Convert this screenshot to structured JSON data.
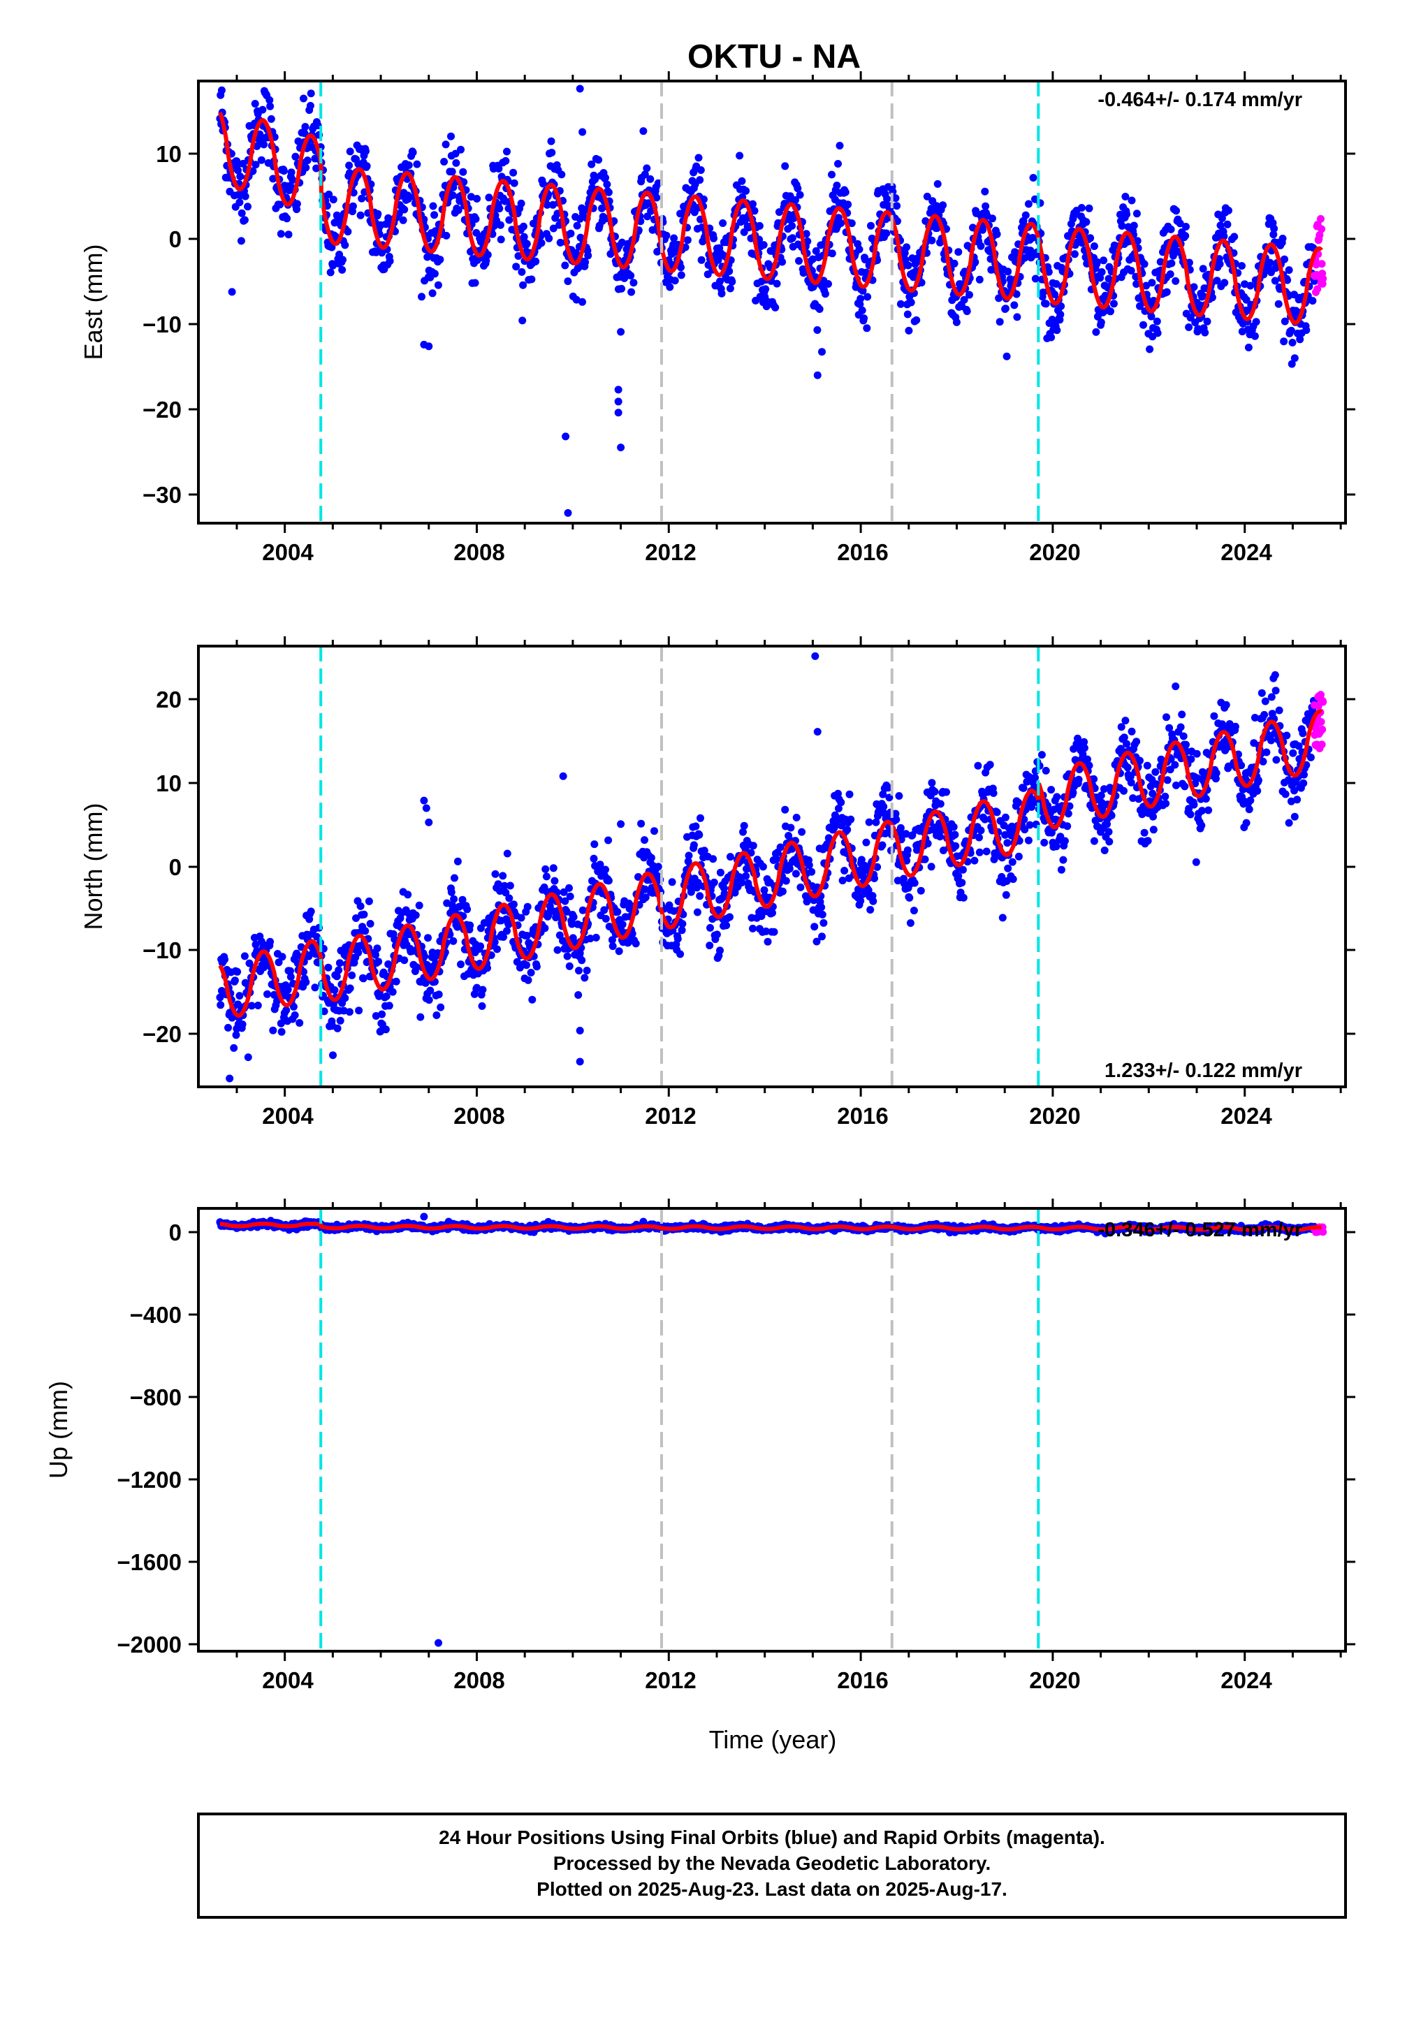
{
  "title": "OKTU - NA",
  "footer": {
    "lines": [
      "24 Hour Positions Using Final Orbits (blue) and Rapid Orbits (magenta).",
      "Processed by the Nevada Geodetic Laboratory.",
      "Plotted on 2025-Aug-23. Last data on 2025-Aug-17."
    ]
  },
  "colors": {
    "final_orbits": "#0000ff",
    "rapid_orbits": "#ff00ff",
    "model_fit": "#ff0000",
    "equipment_change": "#00e5e5",
    "other_event": "#c0c0c0"
  },
  "chart_data": [
    {
      "type": "scatter",
      "name": "east",
      "ylabel": "East (mm)",
      "xlim": [
        2002.2,
        2026.1
      ],
      "ylim": [
        -33.5,
        18.5
      ],
      "xticks": [
        "2004",
        "2008",
        "2012",
        "2016",
        "2020",
        "2024"
      ],
      "yticks": [
        "10",
        "0",
        "−10",
        "−20",
        "−30"
      ],
      "rate_label": "-0.464+/- 0.174 mm/yr",
      "event_lines": [
        {
          "x": 2004.75,
          "kind": "equipment_change"
        },
        {
          "x": 2011.85,
          "kind": "other_event"
        },
        {
          "x": 2016.65,
          "kind": "other_event"
        },
        {
          "x": 2019.7,
          "kind": "equipment_change"
        }
      ],
      "model": {
        "x_start": 2002.65,
        "x_end": 2025.6,
        "segments": [
          {
            "from": 2002.65,
            "to": 2004.75,
            "offset": 11.0,
            "rate": -1.8
          },
          {
            "from": 2004.75,
            "to": 2019.7,
            "offset": 4.0,
            "rate": -0.46
          },
          {
            "from": 2019.7,
            "to": 2025.6,
            "offset": -3.0,
            "rate": -0.46
          }
        ],
        "annual_amplitude": 4.5,
        "annual_peak_fraction": 0.55
      },
      "outliers": [
        {
          "x": 2009.85,
          "y": -23.3
        },
        {
          "x": 2009.9,
          "y": -32.3
        },
        {
          "x": 2010.15,
          "y": 17.6
        },
        {
          "x": 2010.2,
          "y": 12.5
        },
        {
          "x": 2011.0,
          "y": -11.0
        },
        {
          "x": 2010.95,
          "y": -17.8
        },
        {
          "x": 2010.95,
          "y": -19.2
        },
        {
          "x": 2010.95,
          "y": -20.5
        },
        {
          "x": 2011.0,
          "y": -24.6
        },
        {
          "x": 2006.9,
          "y": -12.5
        },
        {
          "x": 2007.0,
          "y": -12.7
        },
        {
          "x": 2015.1,
          "y": -16.1
        },
        {
          "x": 2002.9,
          "y": -6.3
        }
      ],
      "rapid_tail": {
        "from": 2025.45,
        "to": 2025.63,
        "y_min": -6.5,
        "y_max": 2.8
      }
    },
    {
      "type": "scatter",
      "name": "north",
      "ylabel": "North (mm)",
      "xlim": [
        2002.2,
        2026.1
      ],
      "ylim": [
        -26,
        26.5
      ],
      "xticks": [
        "2004",
        "2008",
        "2012",
        "2016",
        "2020",
        "2024"
      ],
      "yticks": [
        "20",
        "10",
        "0",
        "−10",
        "−20"
      ],
      "rate_label": "1.233+/- 0.122 mm/yr",
      "event_lines": [
        {
          "x": 2004.75,
          "kind": "equipment_change"
        },
        {
          "x": 2011.85,
          "kind": "other_event"
        },
        {
          "x": 2016.65,
          "kind": "other_event"
        },
        {
          "x": 2019.7,
          "kind": "equipment_change"
        }
      ],
      "model": {
        "x_start": 2002.65,
        "x_end": 2025.6,
        "segments": [
          {
            "from": 2002.65,
            "to": 2004.75,
            "offset": -14.5,
            "rate": 1.233
          },
          {
            "from": 2004.75,
            "to": 2019.7,
            "offset": -12.5,
            "rate": 1.233
          },
          {
            "from": 2019.7,
            "to": 2025.6,
            "offset": 8.0,
            "rate": 1.233
          }
        ],
        "annual_amplitude": 3.5,
        "annual_peak_fraction": 0.55
      },
      "outliers": [
        {
          "x": 2006.9,
          "y": 8.1
        },
        {
          "x": 2006.95,
          "y": 7.2
        },
        {
          "x": 2007.0,
          "y": 5.5
        },
        {
          "x": 2009.8,
          "y": 11.0
        },
        {
          "x": 2010.15,
          "y": -19.3
        },
        {
          "x": 2010.15,
          "y": -23.0
        },
        {
          "x": 2015.05,
          "y": 25.3
        },
        {
          "x": 2015.1,
          "y": 16.3
        },
        {
          "x": 2002.85,
          "y": -25.0
        },
        {
          "x": 2011.0,
          "y": 5.3
        }
      ],
      "rapid_tail": {
        "from": 2025.45,
        "to": 2025.63,
        "y_min": 14.3,
        "y_max": 20.8
      }
    },
    {
      "type": "scatter",
      "name": "up",
      "xlabel": "Time (year)",
      "ylabel": "Up (mm)",
      "xlim": [
        2002.2,
        2026.1
      ],
      "ylim": [
        -2040,
        95
      ],
      "xticks": [
        "2004",
        "2008",
        "2012",
        "2016",
        "2020",
        "2024"
      ],
      "yticks": [
        "0",
        "−400",
        "−800",
        "−1200",
        "−1600",
        "−2000"
      ],
      "rate_label": "-0.346+/- 0.527 mm/yr",
      "event_lines": [
        {
          "x": 2004.75,
          "kind": "equipment_change"
        },
        {
          "x": 2011.85,
          "kind": "other_event"
        },
        {
          "x": 2016.65,
          "kind": "other_event"
        },
        {
          "x": 2019.7,
          "kind": "equipment_change"
        }
      ],
      "model": {
        "x_start": 2002.65,
        "x_end": 2025.6,
        "segments": [
          {
            "from": 2002.65,
            "to": 2004.75,
            "offset": 15.0,
            "rate": 0.0
          },
          {
            "from": 2004.75,
            "to": 2019.7,
            "offset": 5.0,
            "rate": -0.35
          },
          {
            "from": 2019.7,
            "to": 2025.6,
            "offset": 0.0,
            "rate": -0.35
          }
        ],
        "annual_amplitude": 6.0,
        "annual_peak_fraction": 0.55
      },
      "outliers": [
        {
          "x": 2007.2,
          "y": -2000
        },
        {
          "x": 2006.9,
          "y": 55
        }
      ],
      "rapid_tail": {
        "from": 2025.45,
        "to": 2025.63,
        "y_min": -20,
        "y_max": 5
      }
    }
  ]
}
